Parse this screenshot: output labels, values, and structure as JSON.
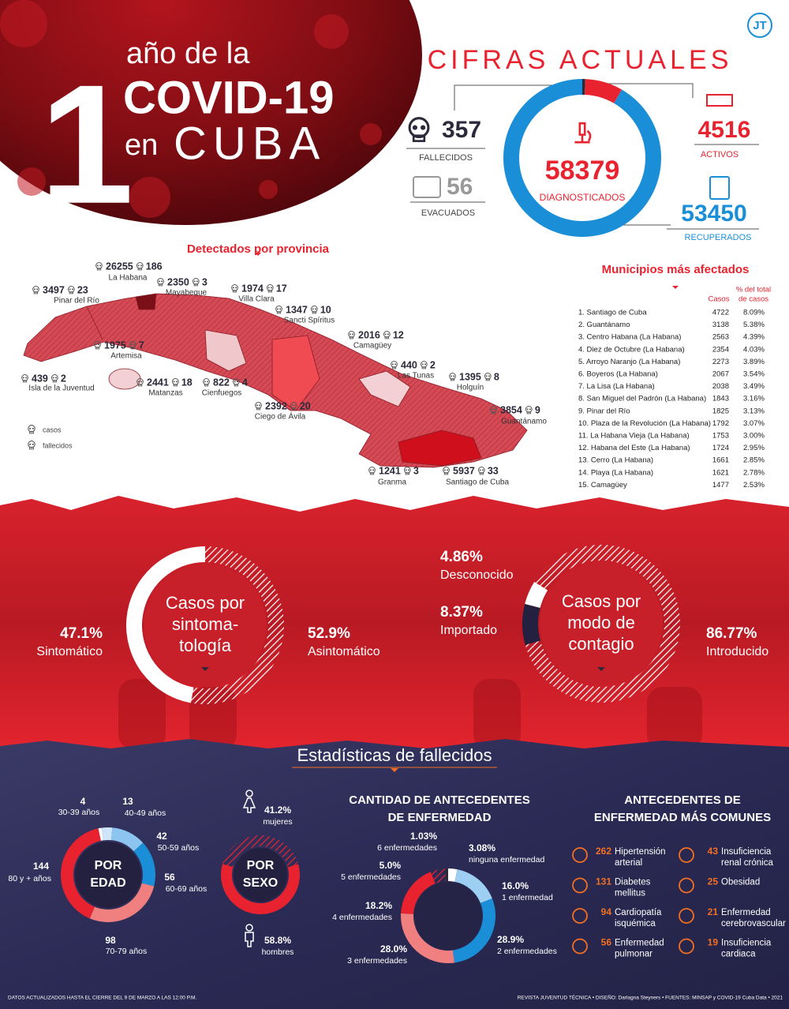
{
  "header": {
    "number": "1",
    "line1": "año de la",
    "line2": "COVID-19",
    "line3_a": "en",
    "line3_b": "CUBA",
    "logo": "JT"
  },
  "current": {
    "title": "CIFRAS ACTUALES",
    "diagnosed": {
      "value": 58379,
      "label": "DIAGNOSTICADOS"
    },
    "deaths": {
      "value": 357,
      "label": "FALLECIDOS",
      "color": "#2b2a3a"
    },
    "evacuated": {
      "value": 56,
      "label": "EVACUADOS"
    },
    "active": {
      "value": 4516,
      "label": "ACTIVOS",
      "color": "#e8232f"
    },
    "recovered": {
      "value": 53450,
      "label": "RECUPERADOS",
      "color": "#1a8fd8"
    }
  },
  "provinces": {
    "title": "Detectados por provincia",
    "legend": [
      "casos",
      "fallecidos"
    ],
    "items": [
      {
        "name": "La Habana",
        "cases": 26255,
        "deaths": 186
      },
      {
        "name": "Mayabeque",
        "cases": 2350,
        "deaths": 3
      },
      {
        "name": "Pinar del Río",
        "cases": 3497,
        "deaths": 23
      },
      {
        "name": "Villa Clara",
        "cases": 1974,
        "deaths": 17
      },
      {
        "name": "Sancti Spíritus",
        "cases": 1347,
        "deaths": 10
      },
      {
        "name": "Camagüey",
        "cases": 2016,
        "deaths": 12
      },
      {
        "name": "Artemisa",
        "cases": 1975,
        "deaths": 7
      },
      {
        "name": "Las Tunas",
        "cases": 440,
        "deaths": 2
      },
      {
        "name": "Holguín",
        "cases": 1395,
        "deaths": 8
      },
      {
        "name": "Isla de la Juventud",
        "cases": 439,
        "deaths": 2
      },
      {
        "name": "Matanzas",
        "cases": 2441,
        "deaths": 18
      },
      {
        "name": "Cienfuegos",
        "cases": 822,
        "deaths": 4
      },
      {
        "name": "Ciego de Ávila",
        "cases": 2392,
        "deaths": 20
      },
      {
        "name": "Guantánamo",
        "cases": 3854,
        "deaths": 9
      },
      {
        "name": "Granma",
        "cases": 1241,
        "deaths": 3
      },
      {
        "name": "Santiago de Cuba",
        "cases": 5937,
        "deaths": 33
      }
    ]
  },
  "municipalities": {
    "title": "Municipios más afectados",
    "col_cases": "Casos",
    "col_pct_lines": [
      "% del total",
      "de casos"
    ],
    "rows": [
      [
        "1. Santiago de Cuba",
        4722,
        "8.09%"
      ],
      [
        "2. Guantánamo",
        3138,
        "5.38%"
      ],
      [
        "3. Centro Habana (La Habana)",
        2563,
        "4.39%"
      ],
      [
        "4. Diez de Octubre (La Habana)",
        2354,
        "4.03%"
      ],
      [
        "5. Arroyo Naranjo (La Habana)",
        2273,
        "3.89%"
      ],
      [
        "6. Boyeros (La Habana)",
        2067,
        "3.54%"
      ],
      [
        "7. La Lisa (La Habana)",
        2038,
        "3.49%"
      ],
      [
        "8. San Miguel del Padrón (La Habana)",
        1843,
        "3.16%"
      ],
      [
        "9. Pinar del Río",
        1825,
        "3.13%"
      ],
      [
        "10. Plaza de la Revolución (La Habana)",
        1792,
        "3.07%"
      ],
      [
        "11. La Habana Vieja (La Habana)",
        1753,
        "3.00%"
      ],
      [
        "12. Habana del Este (La Habana)",
        1724,
        "2.95%"
      ],
      [
        "13. Cerro (La Habana)",
        1661,
        "2.85%"
      ],
      [
        "14. Playa (La Habana)",
        1621,
        "2.78%"
      ],
      [
        "15. Camagüey",
        1477,
        "2.53%"
      ]
    ]
  },
  "symptoms": {
    "title_lines": [
      "Casos por",
      "sintoma-",
      "tología"
    ],
    "segments": [
      {
        "name": "Sintomático",
        "value": 47.1,
        "value_label": "47.1%",
        "color": "#ffffff"
      },
      {
        "name": "Asintomático",
        "value": 52.9,
        "value_label": "52.9%",
        "color": "#ffffff",
        "hatched": true
      }
    ]
  },
  "contagion": {
    "title_lines": [
      "Casos por",
      "modo de",
      "contagio"
    ],
    "segments": [
      {
        "name": "Desconocido",
        "value": 4.86,
        "value_label": "4.86%",
        "color": "#ffffff"
      },
      {
        "name": "Importado",
        "value": 8.37,
        "value_label": "8.37%",
        "color": "#23213f"
      },
      {
        "name": "Introducido",
        "value": 86.77,
        "value_label": "86.77%",
        "color": "#ffffff",
        "hatched": true
      }
    ]
  },
  "deaths_stats": {
    "title": "Estadísticas de fallecidos",
    "age": {
      "title_lines": [
        "POR",
        "EDAD"
      ],
      "segments": [
        {
          "name": "30-39 años",
          "value": 4,
          "color": "#ffffff"
        },
        {
          "name": "40-49 años",
          "value": 13,
          "color": "#cfe6fa"
        },
        {
          "name": "50-59 años",
          "value": 42,
          "color": "#8cc6f0"
        },
        {
          "name": "60-69 años",
          "value": 56,
          "color": "#1a8fd8"
        },
        {
          "name": "70-79 años",
          "value": 98,
          "color": "#f08080"
        },
        {
          "name": "80 y + años",
          "value": 144,
          "color": "#e8232f"
        }
      ]
    },
    "sex": {
      "title_lines": [
        "POR",
        "SEXO"
      ],
      "segments": [
        {
          "name": "mujeres",
          "value": 41.2,
          "value_label": "41.2%",
          "color": "#e8232f",
          "hatched": true
        },
        {
          "name": "hombres",
          "value": 58.8,
          "value_label": "58.8%",
          "color": "#e8232f"
        }
      ]
    },
    "comorbidity_count": {
      "title_lines": [
        "CANTIDAD DE ANTECEDENTES",
        "DE ENFERMEDAD"
      ],
      "segments": [
        {
          "name": "ninguna enfermedad",
          "value": 3.08,
          "value_label": "3.08%",
          "color": "#ffffff"
        },
        {
          "name": "1 enfermedad",
          "value": 16.0,
          "value_label": "16.0%",
          "color": "#9dcff2"
        },
        {
          "name": "2 enfermedades",
          "value": 28.9,
          "value_label": "28.9%",
          "color": "#1a8fd8"
        },
        {
          "name": "3 enfermedades",
          "value": 28.0,
          "value_label": "28.0%",
          "color": "#f08080"
        },
        {
          "name": "4 enfermedades",
          "value": 18.2,
          "value_label": "18.2%",
          "color": "#e8232f"
        },
        {
          "name": "5 enfermedades",
          "value": 5.0,
          "value_label": "5.0%",
          "color": "#e8232f",
          "hatched": true
        },
        {
          "name": "6 enfermedades",
          "value": 1.03,
          "value_label": "1.03%",
          "color": "#2b2a3a"
        }
      ]
    },
    "common": {
      "title_lines": [
        "ANTECEDENTES DE",
        "ENFERMEDAD MÁS COMUNES"
      ],
      "items": [
        {
          "value": 262,
          "name_lines": [
            "Hipertensión",
            "arterial"
          ]
        },
        {
          "value": 131,
          "name_lines": [
            "Diabetes",
            "mellitus"
          ]
        },
        {
          "value": 94,
          "name_lines": [
            "Cardiopatía",
            "isquémica"
          ]
        },
        {
          "value": 56,
          "name_lines": [
            "Enfermedad",
            "pulmonar"
          ]
        },
        {
          "value": 43,
          "name_lines": [
            "Insuficiencia",
            "renal crónica"
          ]
        },
        {
          "value": 25,
          "name_lines": [
            "Obesidad"
          ]
        },
        {
          "value": 21,
          "name_lines": [
            "Enfermedad",
            "cerebrovascular"
          ]
        },
        {
          "value": 19,
          "name_lines": [
            "Insuficiencia",
            "cardiaca"
          ]
        }
      ]
    }
  },
  "footer": {
    "left": "DATOS ACTUALIZADOS HASTA EL CIERRE DEL 9 DE MARZO A LAS 12:00 P.M.",
    "right": "REVISTA JUVENTUD TÉCNICA • DISEÑO: Darlagna Steyners • FUENTES: MINSAP y COVID-19 Cuba Data • 2021"
  }
}
